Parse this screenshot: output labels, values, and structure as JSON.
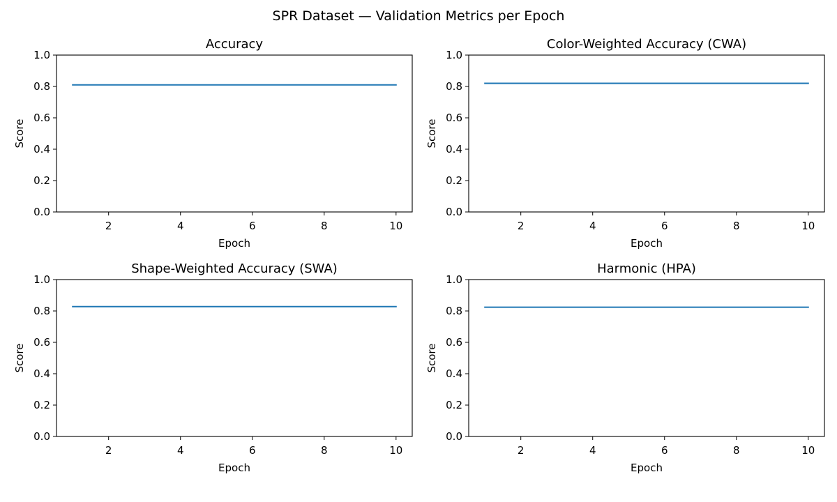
{
  "figure": {
    "suptitle": "SPR Dataset — Validation Metrics per Epoch"
  },
  "colors": {
    "line": "#1f77b4",
    "axes": "#000000",
    "background": "#ffffff"
  },
  "chart_data": [
    {
      "type": "line",
      "title": "Accuracy",
      "xlabel": "Epoch",
      "ylabel": "Score",
      "x": [
        1,
        2,
        3,
        4,
        5,
        6,
        7,
        8,
        9,
        10
      ],
      "series": [
        {
          "values": [
            0.81,
            0.81,
            0.81,
            0.81,
            0.81,
            0.81,
            0.81,
            0.81,
            0.81,
            0.81
          ]
        }
      ],
      "xlim": [
        0.55,
        10.45
      ],
      "ylim": [
        0,
        1
      ],
      "xticks": [
        2,
        4,
        6,
        8,
        10
      ],
      "yticks": [
        0.0,
        0.2,
        0.4,
        0.6,
        0.8,
        1.0
      ],
      "grid": false
    },
    {
      "type": "line",
      "title": "Color-Weighted Accuracy (CWA)",
      "xlabel": "Epoch",
      "ylabel": "Score",
      "x": [
        1,
        2,
        3,
        4,
        5,
        6,
        7,
        8,
        9,
        10
      ],
      "series": [
        {
          "values": [
            0.82,
            0.82,
            0.82,
            0.82,
            0.82,
            0.82,
            0.82,
            0.82,
            0.82,
            0.82
          ]
        }
      ],
      "xlim": [
        0.55,
        10.45
      ],
      "ylim": [
        0,
        1
      ],
      "xticks": [
        2,
        4,
        6,
        8,
        10
      ],
      "yticks": [
        0.0,
        0.2,
        0.4,
        0.6,
        0.8,
        1.0
      ],
      "grid": false
    },
    {
      "type": "line",
      "title": "Shape-Weighted Accuracy (SWA)",
      "xlabel": "Epoch",
      "ylabel": "Score",
      "x": [
        1,
        2,
        3,
        4,
        5,
        6,
        7,
        8,
        9,
        10
      ],
      "series": [
        {
          "values": [
            0.828,
            0.828,
            0.828,
            0.828,
            0.828,
            0.828,
            0.828,
            0.828,
            0.828,
            0.828
          ]
        }
      ],
      "xlim": [
        0.55,
        10.45
      ],
      "ylim": [
        0,
        1
      ],
      "xticks": [
        2,
        4,
        6,
        8,
        10
      ],
      "yticks": [
        0.0,
        0.2,
        0.4,
        0.6,
        0.8,
        1.0
      ],
      "grid": false
    },
    {
      "type": "line",
      "title": "Harmonic (HPA)",
      "xlabel": "Epoch",
      "ylabel": "Score",
      "x": [
        1,
        2,
        3,
        4,
        5,
        6,
        7,
        8,
        9,
        10
      ],
      "series": [
        {
          "values": [
            0.824,
            0.824,
            0.824,
            0.824,
            0.824,
            0.824,
            0.824,
            0.824,
            0.824,
            0.824
          ]
        }
      ],
      "xlim": [
        0.55,
        10.45
      ],
      "ylim": [
        0,
        1
      ],
      "xticks": [
        2,
        4,
        6,
        8,
        10
      ],
      "yticks": [
        0.0,
        0.2,
        0.4,
        0.6,
        0.8,
        1.0
      ],
      "grid": false
    }
  ]
}
